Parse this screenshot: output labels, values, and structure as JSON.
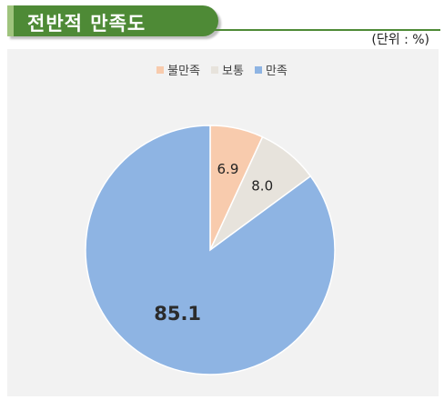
{
  "title": "전반적 만족도",
  "unit_label": "(단위 : %)",
  "colors": {
    "title_bg": "#4e8a36",
    "title_accent": "#9fc47d",
    "plot_bg": "#f2f2f2"
  },
  "chart_data": {
    "type": "pie",
    "title": "전반적 만족도",
    "legend_position": "top",
    "slices": [
      {
        "name": "불만족",
        "value": 6.9,
        "label": "6.9",
        "color": "#f8cbad"
      },
      {
        "name": "보통",
        "value": 8.0,
        "label": "8.0",
        "color": "#e7e3dc"
      },
      {
        "name": "만족",
        "value": 85.1,
        "label": "85.1",
        "color": "#8eb4e3"
      }
    ]
  }
}
